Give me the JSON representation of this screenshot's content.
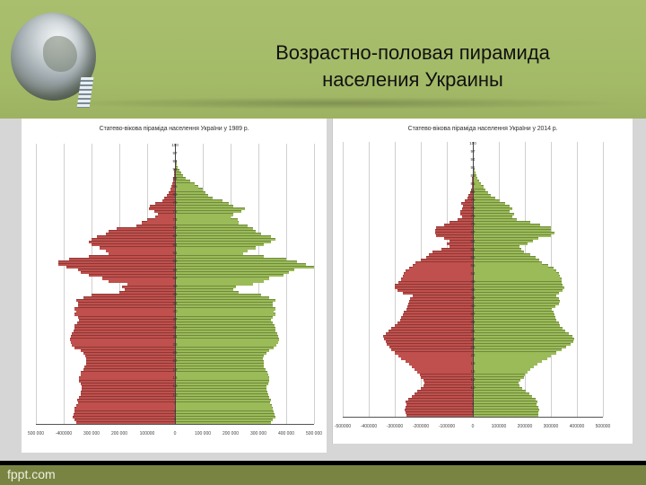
{
  "slide": {
    "title_line1": "Возрастно-половая пирамида",
    "title_line2": "населения Украины",
    "footer": "fppt.com"
  },
  "colors": {
    "male": "#c0504d",
    "female": "#9bbb59",
    "header": "#a5bb68",
    "footer": "#7a8442"
  },
  "chart_data": [
    {
      "type": "bar",
      "orientation": "horizontal-population-pyramid",
      "title": "Статево-вікова піраміда населення України у 1989 р.",
      "xlabel": "",
      "ylabel": "",
      "xlim": [
        -500000,
        500000
      ],
      "x_tick_labels": [
        "500 000",
        "-400000",
        "300 000",
        "200 000",
        "100000",
        "0",
        "100 000",
        "200 000",
        "300 000",
        "400 000",
        "500 000"
      ],
      "y_tick_labels": [
        "100",
        "97",
        "94",
        "91",
        "88",
        "85",
        "82",
        "79",
        "76",
        "73",
        "70",
        "67",
        "64",
        "61",
        "58",
        "55",
        "52",
        "49",
        "46",
        "43",
        "40",
        "37",
        "34",
        "31",
        "28",
        "25",
        "22",
        "19",
        "16",
        "13",
        "10",
        "7",
        "4",
        "1"
      ],
      "grid": true,
      "legend": "none",
      "categories_note": "age 0 (bottom) to 100 (top)",
      "series": [
        {
          "name": "male",
          "values": [
            355000,
            360000,
            368000,
            365000,
            362000,
            360000,
            355000,
            350000,
            352000,
            345000,
            340000,
            338000,
            337000,
            335000,
            340000,
            345000,
            345000,
            340000,
            338000,
            330000,
            325000,
            320000,
            320000,
            318000,
            322000,
            330000,
            340000,
            360000,
            370000,
            375000,
            378000,
            375000,
            370000,
            365000,
            362000,
            360000,
            352000,
            345000,
            350000,
            360000,
            355000,
            360000,
            350000,
            348000,
            355000,
            330000,
            300000,
            200000,
            180000,
            190000,
            170000,
            240000,
            260000,
            310000,
            340000,
            350000,
            390000,
            420000,
            420000,
            380000,
            310000,
            240000,
            250000,
            270000,
            300000,
            310000,
            300000,
            280000,
            250000,
            240000,
            210000,
            140000,
            120000,
            100000,
            70000,
            60000,
            75000,
            95000,
            90000,
            70000,
            45000,
            40000,
            30000,
            22000,
            16000,
            12000,
            9000,
            7000,
            5000,
            3500,
            2500,
            1800,
            1200,
            800,
            500,
            300,
            200,
            120,
            60,
            30,
            10
          ]
        },
        {
          "name": "female",
          "values": [
            345000,
            350000,
            362000,
            358000,
            355000,
            352000,
            348000,
            342000,
            345000,
            340000,
            335000,
            332000,
            330000,
            330000,
            335000,
            338000,
            340000,
            336000,
            332000,
            325000,
            320000,
            318000,
            318000,
            316000,
            320000,
            328000,
            338000,
            355000,
            365000,
            370000,
            375000,
            372000,
            368000,
            362000,
            360000,
            358000,
            352000,
            345000,
            350000,
            360000,
            356000,
            362000,
            352000,
            350000,
            360000,
            340000,
            310000,
            230000,
            210000,
            220000,
            280000,
            320000,
            340000,
            390000,
            410000,
            430000,
            500000,
            470000,
            440000,
            400000,
            320000,
            245000,
            260000,
            290000,
            320000,
            345000,
            360000,
            345000,
            310000,
            290000,
            280000,
            260000,
            230000,
            225000,
            200000,
            210000,
            240000,
            250000,
            210000,
            195000,
            170000,
            135000,
            120000,
            110000,
            100000,
            85000,
            70000,
            55000,
            40000,
            30000,
            22000,
            16000,
            11000,
            8000,
            5000,
            3000,
            2000,
            1200,
            700,
            300,
            100
          ]
        }
      ]
    },
    {
      "type": "bar",
      "orientation": "horizontal-population-pyramid",
      "title": "Статево-вікова піраміда населення України у 2014 р.",
      "xlabel": "",
      "ylabel": "",
      "xlim": [
        -500000,
        500000
      ],
      "x_tick_labels": [
        "-500000",
        "-400000",
        "-300000",
        "-200000",
        "-100000",
        "0",
        "100000",
        "200000",
        "300000",
        "400000",
        "500000"
      ],
      "y_tick_labels": [
        "100",
        "97",
        "94",
        "91",
        "88",
        "85",
        "82",
        "79",
        "76",
        "73",
        "70",
        "67",
        "64",
        "61",
        "58",
        "55",
        "52",
        "49",
        "46",
        "43",
        "40",
        "37",
        "34",
        "31",
        "28",
        "25",
        "22",
        "19",
        "16",
        "13",
        "10",
        "7",
        "4",
        "1"
      ],
      "grid": true,
      "legend": "none",
      "categories_note": "age 0 (bottom) to 100 (top)",
      "series": [
        {
          "name": "male",
          "values": [
            255000,
            260000,
            262000,
            258000,
            255000,
            260000,
            250000,
            235000,
            225000,
            215000,
            200000,
            190000,
            185000,
            190000,
            200000,
            205000,
            215000,
            225000,
            235000,
            245000,
            260000,
            275000,
            285000,
            300000,
            315000,
            320000,
            330000,
            335000,
            340000,
            345000,
            335000,
            325000,
            315000,
            300000,
            290000,
            280000,
            275000,
            270000,
            265000,
            255000,
            252000,
            250000,
            245000,
            240000,
            230000,
            270000,
            290000,
            300000,
            300000,
            285000,
            275000,
            270000,
            265000,
            260000,
            245000,
            230000,
            220000,
            200000,
            180000,
            170000,
            155000,
            120000,
            90000,
            100000,
            90000,
            110000,
            140000,
            145000,
            145000,
            140000,
            110000,
            90000,
            60000,
            40000,
            48000,
            50000,
            40000,
            38000,
            45000,
            30000,
            22000,
            16000,
            11000,
            8000,
            5000,
            3500,
            2500,
            1800,
            1200,
            800,
            500,
            300,
            200,
            150,
            100,
            60,
            40,
            20,
            10,
            5,
            2
          ]
        },
        {
          "name": "female",
          "values": [
            250000,
            252000,
            255000,
            250000,
            245000,
            248000,
            240000,
            228000,
            218000,
            205000,
            190000,
            180000,
            175000,
            182000,
            195000,
            200000,
            210000,
            222000,
            235000,
            248000,
            265000,
            285000,
            300000,
            320000,
            340000,
            360000,
            375000,
            385000,
            390000,
            382000,
            370000,
            355000,
            345000,
            335000,
            330000,
            320000,
            318000,
            315000,
            310000,
            305000,
            318000,
            330000,
            335000,
            330000,
            320000,
            330000,
            345000,
            350000,
            345000,
            340000,
            340000,
            335000,
            330000,
            320000,
            310000,
            290000,
            265000,
            255000,
            240000,
            220000,
            195000,
            185000,
            180000,
            210000,
            230000,
            250000,
            300000,
            315000,
            300000,
            300000,
            260000,
            220000,
            170000,
            150000,
            160000,
            140000,
            150000,
            140000,
            125000,
            105000,
            85000,
            70000,
            58000,
            48000,
            40000,
            32000,
            25000,
            18000,
            13000,
            9000,
            6000,
            4000,
            2500,
            1500,
            900,
            500,
            300,
            150,
            80,
            30,
            10
          ]
        }
      ]
    }
  ]
}
